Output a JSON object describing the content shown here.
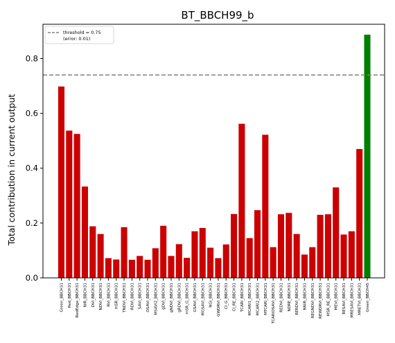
{
  "chart_data": {
    "type": "bar",
    "title": "BT_BBCH99_b",
    "xlabel": "",
    "ylabel": "Total contribution in current output",
    "ylim": [
      0,
      0.925
    ],
    "yticks": [
      "0.0",
      "0.2",
      "0.4",
      "0.6",
      "0.8"
    ],
    "threshold": 0.74,
    "legend": {
      "position": "top-left",
      "lines": [
        "threshold = 0.75",
        "(error: 0.01)"
      ]
    },
    "colors": {
      "normal": "#cc0000",
      "highlight": "#008000",
      "threshold": "#808080"
    },
    "categories": [
      "Green_BBCH31",
      "Red_BBCH31",
      "RedEdge_BBCH31",
      "NIR_BBCH31",
      "DVI_BBCH31",
      "NDVI_BBCH31",
      "RVI_BBCH31",
      "mSR_BBCH31",
      "TNDVI_BBCH31",
      "RDVI_BBCH31",
      "SAVI_BBCH31",
      "OSAVI_BBCH31",
      "MSAVI2_BBCH31",
      "gDVI_BBCH31",
      "gNDVI_BBCH31",
      "gRDVI_BBCH31",
      "mSR_G_BBCH31",
      "GSAVI_BBCH31",
      "MGSAVI_BBCH31",
      "NGI_BBCH31",
      "GWDRVI_BBCH31",
      "CI_G_BBCH31",
      "CI_RE_BBCH31",
      "TCARI_BBCH31",
      "MCARI1_BBCH31",
      "MCARI2_BBCH31",
      "MTCARI_BBCH31",
      "TCARIOSAVI_BBCH31",
      "REDVI_BBCH31",
      "NDRE_BBCH31",
      "RERDVI_BBCH31",
      "NNIR_BBCH31",
      "REGNDVI_BBCH31",
      "REWDRVI_BBCH31",
      "MSR_RE_BBCH31",
      "MEVI_BBCH31",
      "RESAVI_BBCH31",
      "MRESAVI_BBCH31",
      "MRETVI_BBCH31",
      "Green_BBCH45"
    ],
    "values": [
      0.698,
      0.537,
      0.525,
      0.333,
      0.188,
      0.16,
      0.072,
      0.067,
      0.185,
      0.066,
      0.08,
      0.066,
      0.108,
      0.19,
      0.08,
      0.123,
      0.073,
      0.17,
      0.182,
      0.11,
      0.072,
      0.122,
      0.233,
      0.562,
      0.145,
      0.247,
      0.522,
      0.112,
      0.232,
      0.237,
      0.16,
      0.085,
      0.112,
      0.23,
      0.232,
      0.33,
      0.158,
      0.17,
      0.47,
      0.887
    ],
    "highlight_index": 39
  }
}
